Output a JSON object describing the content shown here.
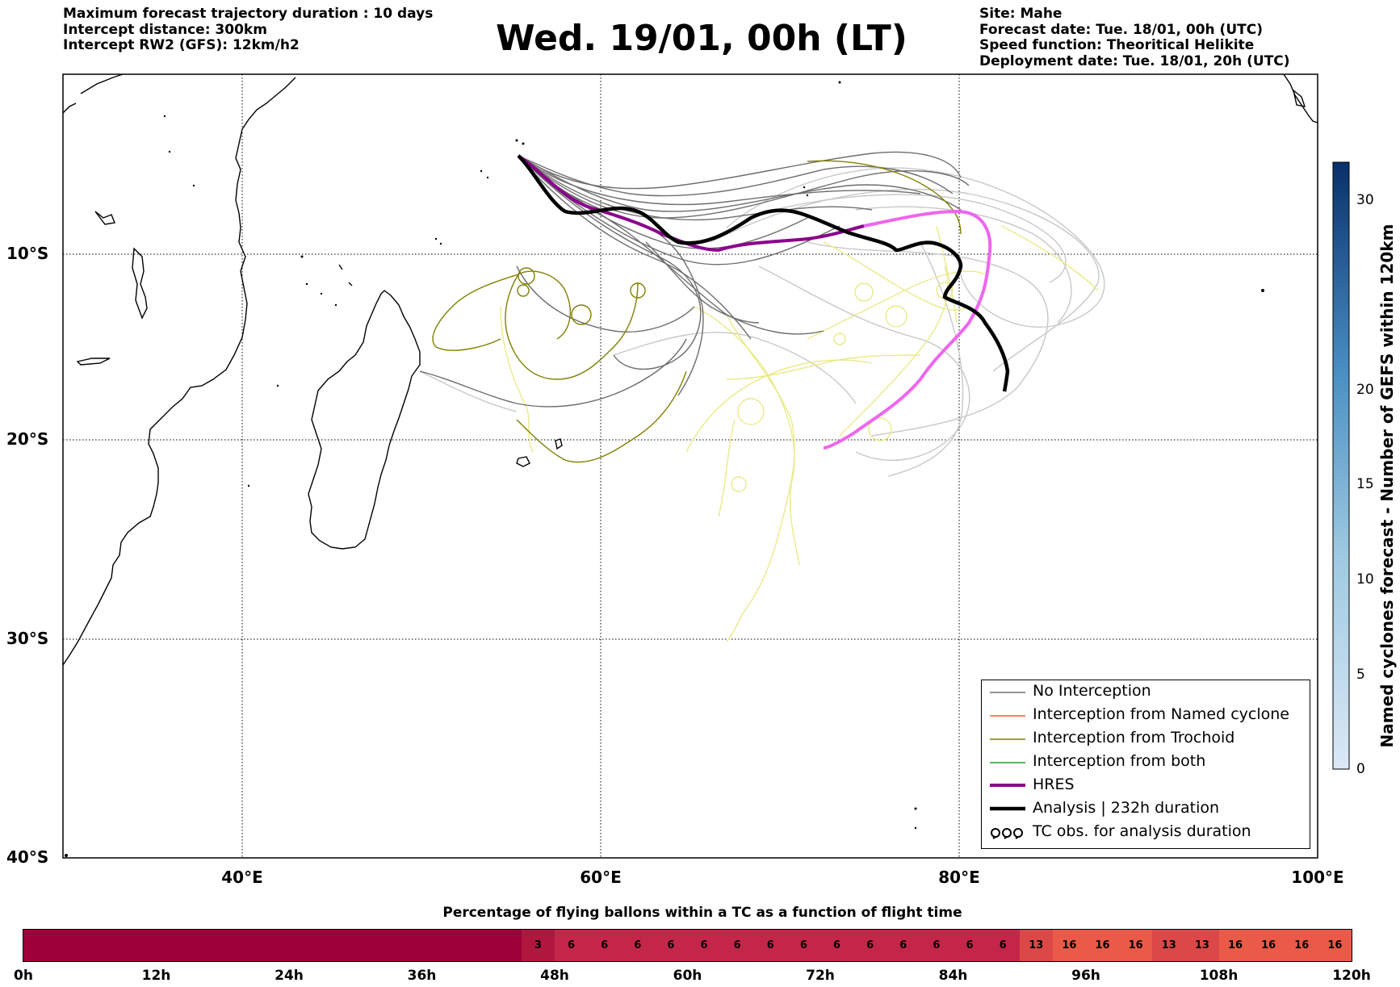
{
  "header": {
    "left": [
      "Maximum forecast trajectory duration : 10 days",
      "Intercept distance: 300km",
      "Intercept RW2 (GFS):  12km/h2"
    ],
    "title": "Wed. 19/01, 00h (LT)",
    "right": [
      "Site: Mahe",
      "Forecast date: Tue. 18/01, 00h (UTC)",
      "Speed function: Theoritical Helikite",
      "Deployment date: Tue. 18/01, 20h (UTC)"
    ]
  },
  "map": {
    "lat_labels": [
      "10°S",
      "20°S",
      "30°S",
      "40°S"
    ],
    "lon_labels": [
      "40°E",
      "60°E",
      "80°E",
      "100°E"
    ],
    "lon_range": [
      30,
      100
    ],
    "lat_range": [
      -1,
      -40
    ],
    "colors": {
      "no_interception": "#6e6e6e",
      "no_interception_light": "#c8c8c8",
      "trochoid": "#808000",
      "trochoid_light": "#eaea8a",
      "hres": "#8b008b",
      "hres_light": "#ee66ee",
      "analysis": "#000000"
    }
  },
  "legend": {
    "items": [
      {
        "label": "No Interception",
        "color": "#6e6e6e",
        "style": "thin"
      },
      {
        "label": "Interception from Named cyclone",
        "color": "#ff5a2e",
        "style": "thin"
      },
      {
        "label": "Interception from Trochoid",
        "color": "#808000",
        "style": "thin"
      },
      {
        "label": "Interception from both",
        "color": "#2a9a2a",
        "style": "thin"
      },
      {
        "label": "HRES",
        "color": "#8b008b",
        "style": "thick"
      },
      {
        "label": "Analysis | 232h duration",
        "color": "#000000",
        "style": "thick"
      },
      {
        "label": "TC obs. for analysis duration",
        "color": "#000000",
        "style": "loops"
      }
    ]
  },
  "colorbar_vertical": {
    "title": "Named cyclones forecast - Number of GEFS within 120km",
    "ticks": [
      "0",
      "5",
      "10",
      "15",
      "20",
      "30"
    ],
    "range": [
      0,
      32
    ],
    "colors": [
      "#dbe8f6",
      "#08306b"
    ]
  },
  "colorbar_horizontal": {
    "title": "Percentage of flying ballons within a TC as a function of flight time",
    "time_labels": [
      "0h",
      "12h",
      "24h",
      "36h",
      "48h",
      "60h",
      "72h",
      "84h",
      "96h",
      "108h",
      "120h"
    ],
    "blank_span_hours": 45,
    "cells": [
      "3",
      "6",
      "6",
      "6",
      "6",
      "6",
      "6",
      "6",
      "6",
      "6",
      "6",
      "6",
      "6",
      "6",
      "6",
      "13",
      "16",
      "16",
      "16",
      "13",
      "13",
      "16",
      "16",
      "16",
      "16"
    ],
    "colors": {
      "zero": "#9e0039",
      "low": "#c4264a",
      "mid": "#dc4848",
      "high": "#eb5a48"
    }
  }
}
